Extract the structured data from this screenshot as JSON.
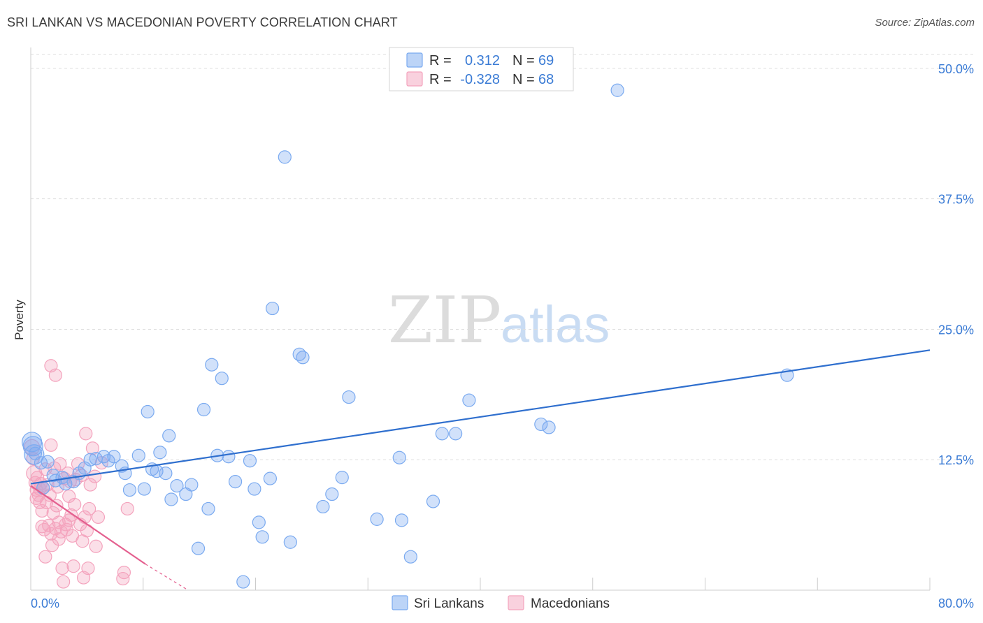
{
  "title": "SRI LANKAN VS MACEDONIAN POVERTY CORRELATION CHART",
  "source": "Source: ZipAtlas.com",
  "watermark": {
    "zip": "ZIP",
    "atlas": "atlas"
  },
  "chart_data": {
    "type": "scatter",
    "title": "SRI LANKAN VS MACEDONIAN POVERTY CORRELATION CHART",
    "xlabel": "",
    "ylabel": "Poverty",
    "xlim": [
      0,
      80
    ],
    "ylim": [
      0,
      52
    ],
    "x_tick_labels": {
      "left": "0.0%",
      "right": "80.0%"
    },
    "y_ticks": [
      12.5,
      25.0,
      37.5,
      50.0
    ],
    "y_tick_labels": [
      "12.5%",
      "25.0%",
      "37.5%",
      "50.0%"
    ],
    "grid": true,
    "legend_placement": "top-center",
    "series": [
      {
        "name": "Sri Lankans",
        "color": "#7aaaf0",
        "line_color": "#2f6fce",
        "R": "0.312",
        "N": "69",
        "trend": {
          "x": [
            0,
            80
          ],
          "y": [
            10.2,
            23.0
          ]
        },
        "points": [
          [
            0.1,
            14.2
          ],
          [
            0.2,
            13.8
          ],
          [
            0.3,
            13.0
          ],
          [
            0.9,
            12.2
          ],
          [
            1.5,
            12.3
          ],
          [
            2.0,
            11.0
          ],
          [
            2.2,
            10.5
          ],
          [
            2.8,
            10.8
          ],
          [
            3.1,
            10.2
          ],
          [
            3.8,
            10.4
          ],
          [
            4.3,
            11.2
          ],
          [
            4.8,
            11.7
          ],
          [
            5.3,
            12.5
          ],
          [
            5.8,
            12.6
          ],
          [
            6.5,
            12.8
          ],
          [
            6.9,
            12.4
          ],
          [
            7.4,
            12.8
          ],
          [
            8.1,
            11.9
          ],
          [
            8.4,
            11.2
          ],
          [
            8.8,
            9.6
          ],
          [
            9.6,
            12.9
          ],
          [
            10.1,
            9.7
          ],
          [
            10.4,
            17.1
          ],
          [
            10.8,
            11.6
          ],
          [
            11.2,
            11.4
          ],
          [
            11.5,
            13.2
          ],
          [
            12.0,
            11.2
          ],
          [
            12.3,
            14.8
          ],
          [
            12.5,
            8.7
          ],
          [
            13.0,
            10.0
          ],
          [
            13.8,
            9.2
          ],
          [
            14.3,
            10.1
          ],
          [
            14.9,
            4.0
          ],
          [
            15.4,
            17.3
          ],
          [
            15.8,
            7.8
          ],
          [
            16.1,
            21.6
          ],
          [
            16.6,
            12.9
          ],
          [
            17.0,
            20.3
          ],
          [
            17.6,
            12.8
          ],
          [
            18.2,
            10.4
          ],
          [
            18.9,
            0.8
          ],
          [
            19.5,
            12.4
          ],
          [
            19.9,
            9.7
          ],
          [
            20.3,
            6.5
          ],
          [
            20.6,
            5.1
          ],
          [
            21.3,
            10.7
          ],
          [
            21.5,
            27.0
          ],
          [
            22.6,
            41.5
          ],
          [
            23.1,
            4.6
          ],
          [
            23.9,
            22.6
          ],
          [
            24.2,
            22.3
          ],
          [
            26.0,
            8.0
          ],
          [
            26.8,
            9.2
          ],
          [
            27.7,
            10.8
          ],
          [
            28.3,
            18.5
          ],
          [
            30.8,
            6.8
          ],
          [
            32.8,
            12.7
          ],
          [
            33.0,
            6.7
          ],
          [
            33.8,
            3.2
          ],
          [
            35.8,
            8.5
          ],
          [
            36.6,
            15.0
          ],
          [
            37.8,
            15.0
          ],
          [
            39.0,
            18.2
          ],
          [
            45.4,
            15.9
          ],
          [
            46.1,
            15.6
          ],
          [
            52.2,
            47.9
          ],
          [
            67.3,
            20.6
          ],
          [
            0.4,
            13.1
          ],
          [
            1.1,
            9.8
          ]
        ]
      },
      {
        "name": "Macedonians",
        "color": "#f4a3bd",
        "line_color": "#e4608f",
        "R": "-0.328",
        "N": "68",
        "trend": {
          "x": [
            0,
            10.2
          ],
          "y": [
            10.0,
            2.5
          ]
        },
        "trend_dashed": {
          "x": [
            10.2,
            14.0
          ],
          "y": [
            2.5,
            -0.3
          ]
        },
        "points": [
          [
            0.1,
            13.7
          ],
          [
            0.2,
            12.6
          ],
          [
            0.3,
            11.2
          ],
          [
            0.4,
            10.3
          ],
          [
            0.5,
            9.6
          ],
          [
            0.5,
            8.8
          ],
          [
            0.6,
            10.8
          ],
          [
            0.7,
            9.1
          ],
          [
            0.8,
            8.4
          ],
          [
            0.9,
            10.2
          ],
          [
            1.0,
            7.6
          ],
          [
            1.0,
            6.1
          ],
          [
            1.1,
            9.8
          ],
          [
            1.2,
            5.8
          ],
          [
            1.3,
            11.6
          ],
          [
            1.4,
            8.4
          ],
          [
            1.5,
            10.1
          ],
          [
            1.6,
            6.2
          ],
          [
            1.7,
            9.1
          ],
          [
            1.8,
            13.9
          ],
          [
            1.8,
            5.4
          ],
          [
            1.9,
            4.3
          ],
          [
            2.0,
            7.4
          ],
          [
            2.1,
            11.7
          ],
          [
            2.2,
            5.9
          ],
          [
            2.3,
            8.1
          ],
          [
            2.4,
            9.9
          ],
          [
            2.5,
            6.5
          ],
          [
            2.6,
            12.1
          ],
          [
            2.7,
            5.6
          ],
          [
            2.8,
            2.1
          ],
          [
            2.9,
            0.8
          ],
          [
            3.0,
            10.7
          ],
          [
            3.1,
            6.3
          ],
          [
            3.2,
            5.8
          ],
          [
            3.3,
            11.2
          ],
          [
            3.4,
            9.0
          ],
          [
            3.5,
            10.4
          ],
          [
            3.6,
            7.2
          ],
          [
            3.7,
            5.2
          ],
          [
            3.8,
            2.3
          ],
          [
            3.9,
            8.2
          ],
          [
            4.0,
            10.6
          ],
          [
            4.2,
            12.1
          ],
          [
            4.4,
            6.3
          ],
          [
            4.5,
            11.0
          ],
          [
            4.6,
            4.7
          ],
          [
            4.7,
            1.2
          ],
          [
            4.8,
            7.0
          ],
          [
            4.9,
            15.0
          ],
          [
            5.0,
            5.7
          ],
          [
            5.1,
            2.1
          ],
          [
            5.2,
            7.8
          ],
          [
            5.3,
            10.1
          ],
          [
            5.5,
            13.6
          ],
          [
            5.7,
            10.9
          ],
          [
            5.8,
            4.2
          ],
          [
            6.0,
            7.0
          ],
          [
            6.3,
            12.2
          ],
          [
            8.2,
            1.1
          ],
          [
            8.3,
            1.7
          ],
          [
            8.6,
            7.8
          ],
          [
            1.8,
            21.5
          ],
          [
            2.2,
            20.6
          ],
          [
            2.5,
            4.9
          ],
          [
            3.4,
            6.7
          ],
          [
            1.3,
            3.2
          ],
          [
            0.8,
            9.7
          ]
        ]
      }
    ]
  }
}
